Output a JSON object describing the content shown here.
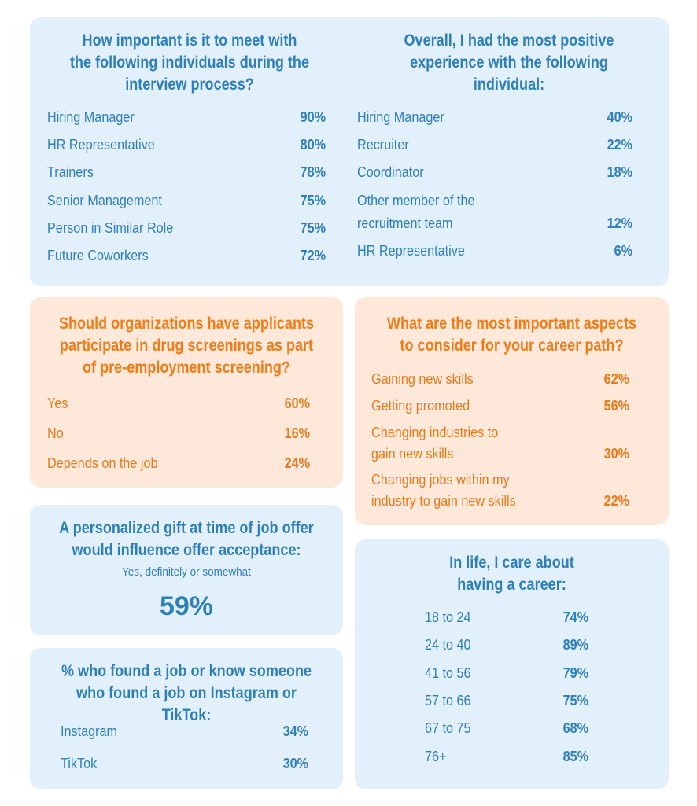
{
  "importance": {
    "title_lines": [
      "How important is it to meet with",
      "the following individuals during the",
      "interview process?"
    ],
    "items": [
      {
        "label": "Hiring Manager",
        "value": "90%"
      },
      {
        "label": "HR Representative",
        "value": "80%"
      },
      {
        "label": "Trainers",
        "value": "78%"
      },
      {
        "label": "Senior Management",
        "value": "75%"
      },
      {
        "label": "Person in Similar Role",
        "value": "75%"
      },
      {
        "label": "Future Coworkers",
        "value": "72%"
      }
    ]
  },
  "positive": {
    "title_lines": [
      "Overall, I had the most positive",
      "experience with the following",
      "individual:"
    ],
    "items": [
      {
        "label": "Hiring Manager",
        "value": "40%"
      },
      {
        "label": "Recruiter",
        "value": "22%"
      },
      {
        "label": "Coordinator",
        "value": "18%"
      },
      {
        "label_lines": [
          "Other member of the",
          "recruitment team"
        ],
        "value": "12%"
      },
      {
        "label": "HR Representative",
        "value": "6%"
      }
    ]
  },
  "drug": {
    "title_lines": [
      "Should organizations have applicants",
      "participate in drug screenings as part",
      "of pre-employment screening?"
    ],
    "items": [
      {
        "label": "Yes",
        "value": "60%"
      },
      {
        "label": "No",
        "value": "16%"
      },
      {
        "label": "Depends on the job",
        "value": "24%"
      }
    ]
  },
  "career_aspects": {
    "title_lines": [
      "What are the most important aspects",
      "to consider for your career path?"
    ],
    "items": [
      {
        "label": "Gaining new skills",
        "value": "62%"
      },
      {
        "label": "Getting promoted",
        "value": "56%"
      },
      {
        "label_lines": [
          "Changing industries to",
          "gain new skills"
        ],
        "value": "30%"
      },
      {
        "label_lines": [
          "Changing jobs within my",
          "industry to gain new skills"
        ],
        "value": "22%"
      }
    ]
  },
  "gift": {
    "title_lines": [
      "A personalized gift at time of job offer",
      "would influence offer acceptance:"
    ],
    "subtitle": "Yes, definitely or somewhat",
    "value": "59%"
  },
  "social": {
    "title_lines": [
      "% who found a job or know someone",
      "who found a job on Instagram or TikTok:"
    ],
    "items": [
      {
        "label": "Instagram",
        "value": "34%"
      },
      {
        "label": "TikTok",
        "value": "30%"
      }
    ]
  },
  "life": {
    "title_lines": [
      "In life, I care about",
      "having a career:"
    ],
    "items": [
      {
        "label": "18 to 24",
        "value": "74%"
      },
      {
        "label": "24 to 40",
        "value": "89%"
      },
      {
        "label": "41 to 56",
        "value": "79%"
      },
      {
        "label": "57 to 66",
        "value": "75%"
      },
      {
        "label": "67 to 75",
        "value": "68%"
      },
      {
        "label": "76+",
        "value": "85%"
      }
    ]
  },
  "colors": {
    "blue_text": "#2f7fb8",
    "orange_text": "#f07c18",
    "blue_bg": "#e2f0fb",
    "orange_bg": "#fde8d9"
  }
}
